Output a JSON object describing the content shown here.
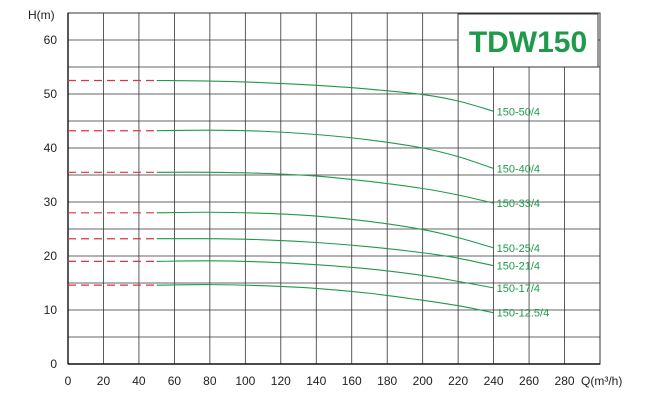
{
  "chart_data": {
    "type": "line",
    "title": "TDW150",
    "xlabel": "Q(m³/h)",
    "ylabel": "H(m)",
    "xlim": [
      0,
      300
    ],
    "ylim": [
      0,
      65
    ],
    "x_ticks": [
      0,
      20,
      40,
      60,
      80,
      100,
      120,
      140,
      160,
      180,
      200,
      220,
      240,
      260,
      280
    ],
    "y_ticks": [
      0,
      10,
      20,
      30,
      40,
      50,
      60
    ],
    "grid": true,
    "series": [
      {
        "name": "150-50/4",
        "shutoff": 52.5,
        "x": [
          50,
          80,
          110,
          140,
          170,
          200,
          220,
          240
        ],
        "y": [
          52.5,
          52.4,
          52.1,
          51.6,
          50.9,
          49.9,
          48.7,
          46.8
        ]
      },
      {
        "name": "150-40/4",
        "shutoff": 43.2,
        "x": [
          50,
          80,
          110,
          140,
          170,
          200,
          220,
          240
        ],
        "y": [
          43.2,
          43.3,
          43.1,
          42.5,
          41.5,
          40.0,
          38.4,
          36.2
        ]
      },
      {
        "name": "150-33/4",
        "shutoff": 35.5,
        "x": [
          50,
          80,
          110,
          140,
          170,
          200,
          220,
          240
        ],
        "y": [
          35.5,
          35.5,
          35.3,
          34.8,
          33.8,
          32.5,
          31.3,
          29.8
        ]
      },
      {
        "name": "150-25/4",
        "shutoff": 28.0,
        "x": [
          50,
          80,
          110,
          140,
          170,
          200,
          220,
          240
        ],
        "y": [
          28.0,
          28.1,
          27.9,
          27.4,
          26.4,
          24.9,
          23.4,
          21.5
        ]
      },
      {
        "name": "150-21/4",
        "shutoff": 23.2,
        "x": [
          50,
          80,
          110,
          140,
          170,
          200,
          220,
          240
        ],
        "y": [
          23.2,
          23.2,
          23.0,
          22.5,
          21.7,
          20.6,
          19.6,
          18.2
        ]
      },
      {
        "name": "150-17/4",
        "shutoff": 19.0,
        "x": [
          50,
          80,
          110,
          140,
          170,
          200,
          220,
          240
        ],
        "y": [
          19.0,
          19.1,
          18.9,
          18.4,
          17.6,
          16.4,
          15.3,
          14.1
        ]
      },
      {
        "name": "150-12.5/4",
        "shutoff": 14.6,
        "x": [
          50,
          80,
          110,
          140,
          170,
          200,
          220,
          240
        ],
        "y": [
          14.6,
          14.7,
          14.5,
          14.0,
          13.1,
          11.8,
          10.8,
          9.5
        ]
      }
    ],
    "colors": {
      "curve": "#1f9a4a",
      "shutoff_dash": "#d9363e",
      "title": "#1f9a4a",
      "grid": "#333333",
      "text": "#222222"
    }
  }
}
